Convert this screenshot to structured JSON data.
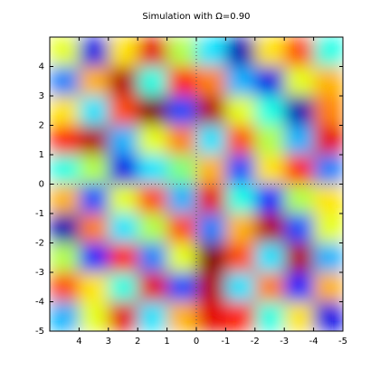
{
  "chart_data": {
    "type": "heatmap",
    "title": "Simulation with Ω=0.90",
    "xlim": [
      5,
      -5
    ],
    "ylim": [
      -5,
      5
    ],
    "xticks": [
      4,
      3,
      2,
      1,
      0,
      -1,
      -2,
      -3,
      -4,
      -5
    ],
    "yticks": [
      -5,
      -4,
      -3,
      -2,
      -1,
      0,
      1,
      2,
      3,
      4
    ],
    "xlines": [
      0
    ],
    "ylines": [
      0
    ],
    "colormap": "jet",
    "clim": [
      -1,
      1
    ],
    "z": [
      [
        0.2,
        -0.8,
        0.3,
        0.8,
        0.1,
        -0.3,
        -0.9,
        0.3,
        0.6,
        -0.2
      ],
      [
        -0.5,
        0.4,
        0.9,
        -0.2,
        0.7,
        0.5,
        -0.4,
        -0.8,
        0.2,
        0.4
      ],
      [
        0.3,
        -0.3,
        0.6,
        1.0,
        -0.6,
        0.9,
        0.2,
        -0.2,
        -0.9,
        0.5
      ],
      [
        0.7,
        0.9,
        -0.4,
        0.2,
        0.5,
        -0.3,
        0.6,
        0.1,
        -0.4,
        0.8
      ],
      [
        -0.2,
        0.1,
        -0.8,
        -0.3,
        0.0,
        0.4,
        -0.6,
        0.3,
        0.7,
        -0.5
      ],
      [
        0.4,
        -0.6,
        0.2,
        0.6,
        -0.4,
        0.8,
        -0.2,
        -0.7,
        0.1,
        0.3
      ],
      [
        -0.9,
        0.5,
        -0.3,
        0.1,
        0.6,
        -0.5,
        0.4,
        0.9,
        -0.6,
        0.2
      ],
      [
        0.1,
        -0.7,
        0.7,
        -0.5,
        0.2,
        1.0,
        0.6,
        -0.3,
        0.9,
        -0.4
      ],
      [
        0.6,
        0.3,
        -0.2,
        0.8,
        -0.6,
        0.9,
        -0.3,
        0.5,
        -0.7,
        0.4
      ],
      [
        -0.4,
        0.2,
        0.8,
        -0.3,
        0.4,
        0.8,
        0.7,
        -0.2,
        0.3,
        -0.8
      ]
    ]
  }
}
